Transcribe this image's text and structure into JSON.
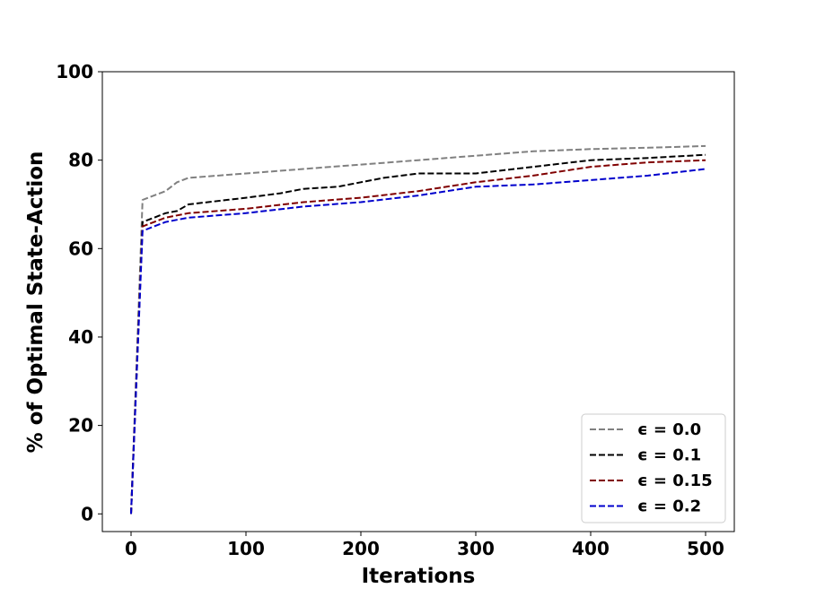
{
  "chart_data": {
    "type": "line",
    "title": "",
    "xlabel": "Iterations",
    "ylabel": "% of Optimal State-Action",
    "xlim": [
      -25,
      525
    ],
    "ylim": [
      -4,
      100
    ],
    "xticks": [
      0,
      100,
      200,
      300,
      400,
      500
    ],
    "yticks": [
      0,
      20,
      40,
      60,
      80,
      100
    ],
    "grid": false,
    "legend_position": "lower-right",
    "line_style": "dashed",
    "series": [
      {
        "name": "ϵ = 0.0",
        "color": "#808080",
        "x": [
          0,
          10,
          20,
          30,
          40,
          50,
          100,
          150,
          200,
          250,
          300,
          350,
          400,
          450,
          500
        ],
        "y": [
          0,
          71,
          72,
          73,
          75,
          76,
          77,
          78,
          79,
          80,
          81,
          82,
          82.5,
          82.8,
          83.2
        ]
      },
      {
        "name": "ϵ = 0.1",
        "color": "#000000",
        "x": [
          0,
          10,
          20,
          30,
          40,
          50,
          100,
          130,
          150,
          180,
          200,
          220,
          250,
          300,
          350,
          400,
          450,
          500
        ],
        "y": [
          0,
          66,
          67,
          68,
          68.5,
          70,
          71.5,
          72.5,
          73.5,
          74,
          75,
          76,
          77,
          77,
          78.5,
          80,
          80.5,
          81.2
        ]
      },
      {
        "name": "ϵ = 0.15",
        "color": "#800000",
        "x": [
          0,
          10,
          20,
          30,
          40,
          50,
          100,
          150,
          200,
          250,
          300,
          350,
          400,
          450,
          500
        ],
        "y": [
          0,
          65,
          66,
          67,
          67.5,
          68,
          69,
          70.5,
          71.5,
          73,
          75,
          76.5,
          78.5,
          79.5,
          80
        ]
      },
      {
        "name": "ϵ = 0.2",
        "color": "#0000cc",
        "x": [
          0,
          10,
          20,
          30,
          40,
          50,
          100,
          150,
          200,
          250,
          300,
          350,
          400,
          450,
          500
        ],
        "y": [
          0,
          64,
          65,
          66,
          66.5,
          67,
          68,
          69.5,
          70.5,
          72,
          74,
          74.5,
          75.5,
          76.5,
          78
        ]
      }
    ]
  }
}
